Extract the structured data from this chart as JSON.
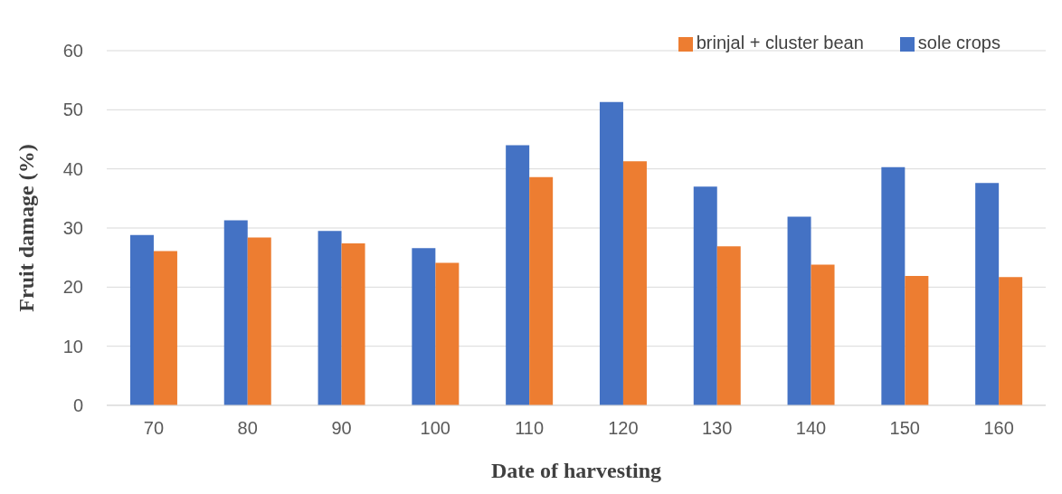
{
  "chart_data": {
    "type": "bar",
    "xlabel": "Date of harvesting",
    "ylabel": "Fruit damage (%)",
    "categories": [
      "70",
      "80",
      "90",
      "100",
      "110",
      "120",
      "130",
      "140",
      "150",
      "160"
    ],
    "series": [
      {
        "name": "sole crops",
        "color": "#4472c4",
        "values": [
          28.8,
          31.3,
          29.5,
          26.6,
          44.0,
          51.3,
          37.0,
          31.9,
          40.3,
          37.6
        ]
      },
      {
        "name": "brinjal + cluster bean",
        "color": "#ed7d31",
        "values": [
          26.1,
          28.4,
          27.4,
          24.1,
          38.6,
          41.3,
          26.9,
          23.8,
          21.9,
          21.7
        ]
      }
    ],
    "ylim": [
      0,
      60
    ],
    "yticks": [
      0,
      10,
      20,
      30,
      40,
      50,
      60
    ],
    "grid": "y",
    "legend": "top right"
  }
}
